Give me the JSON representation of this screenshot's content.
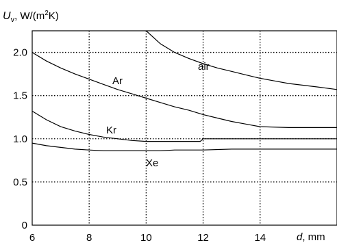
{
  "chart_data": {
    "type": "line",
    "ylabel": {
      "main": "U",
      "sub": "v",
      "unit_pre": ", W/(m",
      "unit_sup": "2",
      "unit_post": "K)"
    },
    "xlabel": {
      "var": "d",
      "unit": ", mm"
    },
    "xlim": [
      6,
      16.7
    ],
    "ylim": [
      0,
      2.25
    ],
    "x_ticks": [
      6,
      8,
      10,
      12,
      14
    ],
    "x_tick_labels": [
      "6",
      "8",
      "10",
      "12",
      "14"
    ],
    "y_ticks": [
      0,
      0.5,
      1.0,
      1.5,
      2.0
    ],
    "y_tick_labels": [
      "0",
      "0.5",
      "1.0",
      "1.5",
      "2.0"
    ],
    "grid": true,
    "series": [
      {
        "name": "air",
        "x": [
          10.0,
          10.5,
          11.0,
          11.5,
          12.0,
          12.5,
          13.0,
          13.5,
          14.0,
          14.5,
          15.0,
          15.5,
          16.0,
          16.7
        ],
        "y": [
          2.25,
          2.1,
          2.0,
          1.93,
          1.87,
          1.82,
          1.78,
          1.74,
          1.7,
          1.67,
          1.64,
          1.62,
          1.6,
          1.57
        ]
      },
      {
        "name": "Ar",
        "x": [
          6.0,
          6.5,
          7.0,
          7.5,
          8.0,
          8.5,
          9.0,
          9.5,
          10.0,
          10.5,
          11.0,
          11.5,
          12.0,
          12.5,
          13.0,
          13.5,
          14.0,
          15.0,
          16.0,
          16.7
        ],
        "y": [
          2.0,
          1.9,
          1.82,
          1.75,
          1.69,
          1.63,
          1.57,
          1.52,
          1.47,
          1.42,
          1.37,
          1.33,
          1.28,
          1.24,
          1.2,
          1.17,
          1.14,
          1.13,
          1.13,
          1.13
        ]
      },
      {
        "name": "Kr",
        "x": [
          6.0,
          6.5,
          7.0,
          7.5,
          8.0,
          8.5,
          9.0,
          9.5,
          10.0,
          11.0,
          11.9,
          12.0,
          13.0,
          14.0,
          15.0,
          16.0,
          16.7
        ],
        "y": [
          1.32,
          1.22,
          1.14,
          1.09,
          1.05,
          1.02,
          1.0,
          0.98,
          0.97,
          0.97,
          0.97,
          1.0,
          1.0,
          1.0,
          1.0,
          1.0,
          1.0
        ]
      },
      {
        "name": "Xe",
        "x": [
          6.0,
          6.5,
          7.0,
          7.5,
          8.0,
          8.5,
          9.0,
          10.0,
          10.5,
          11.0,
          12.0,
          13.0,
          14.0,
          15.0,
          16.0,
          16.7
        ],
        "y": [
          0.95,
          0.92,
          0.9,
          0.88,
          0.87,
          0.86,
          0.86,
          0.86,
          0.86,
          0.87,
          0.87,
          0.88,
          0.88,
          0.88,
          0.88,
          0.88
        ]
      }
    ]
  }
}
